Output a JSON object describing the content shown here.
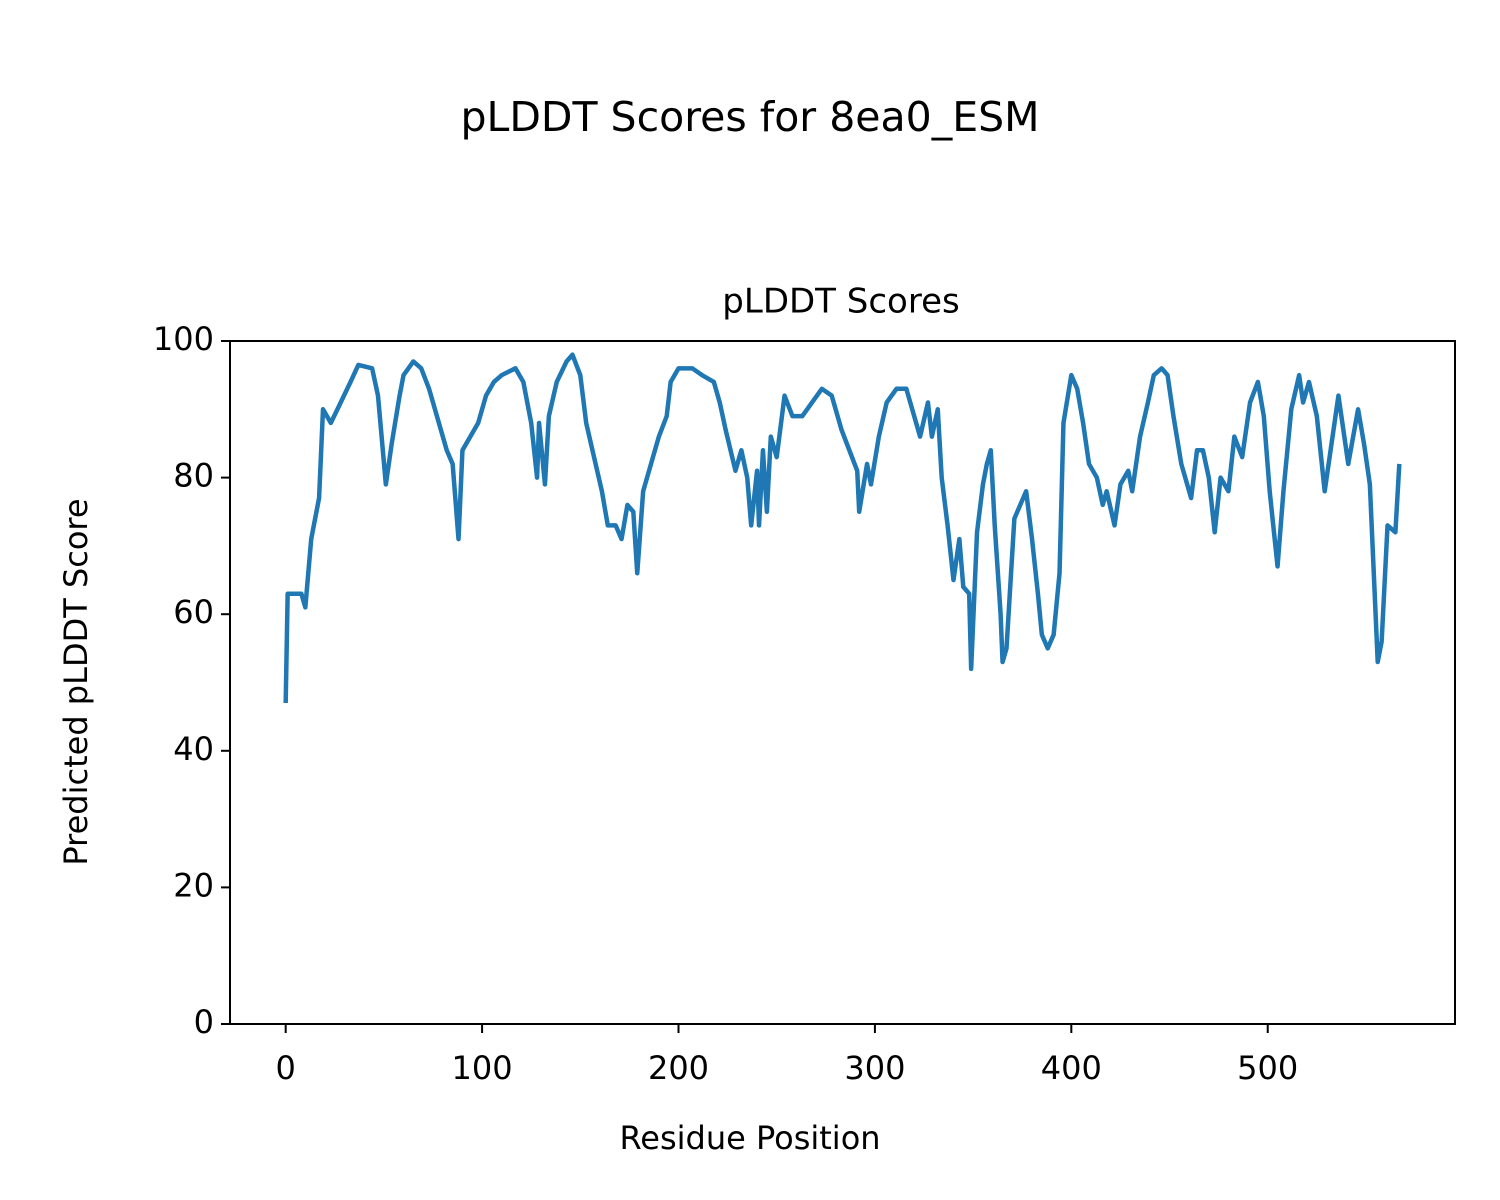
{
  "chart_data": {
    "type": "line",
    "title": "pLDDT Scores for 8ea0_ESM",
    "subtitle": "pLDDT Scores",
    "x_label": "Residue Position",
    "y_label": "Predicted pLDDT Score",
    "xlim": [
      -28.35,
      595.35
    ],
    "ylim": [
      0,
      100
    ],
    "xticks": [
      0,
      100,
      200,
      300,
      400,
      500
    ],
    "yticks": [
      0,
      20,
      40,
      60,
      80,
      100
    ],
    "x": [
      0,
      1,
      8,
      10,
      13,
      17,
      19,
      23,
      28,
      33,
      37,
      44,
      47,
      51,
      54,
      58,
      60,
      65,
      69,
      73,
      77,
      82,
      85,
      88,
      90,
      94,
      98,
      102,
      106,
      110,
      117,
      121,
      125,
      128,
      129,
      132,
      134,
      138,
      143,
      146,
      150,
      153,
      157,
      161,
      164,
      168,
      171,
      174,
      177,
      179,
      182,
      186,
      190,
      194,
      196,
      200,
      207,
      212,
      218,
      221,
      224,
      229,
      232,
      235,
      237,
      240,
      241,
      243,
      245,
      247,
      250,
      254,
      258,
      263,
      268,
      273,
      278,
      283,
      287,
      291,
      292,
      296,
      298,
      302,
      306,
      311,
      316,
      320,
      323,
      327,
      329,
      332,
      334,
      337,
      340,
      343,
      345,
      348,
      349,
      352,
      355,
      357,
      359,
      361,
      364,
      365,
      367,
      371,
      374,
      377,
      380,
      383,
      385,
      388,
      391,
      394,
      396,
      400,
      403,
      406,
      409,
      413,
      416,
      418,
      422,
      425,
      429,
      431,
      435,
      439,
      442,
      446,
      449,
      452,
      456,
      461,
      464,
      467,
      470,
      473,
      476,
      480,
      483,
      487,
      491,
      495,
      498,
      501,
      505,
      508,
      512,
      516,
      518,
      521,
      525,
      529,
      532,
      536,
      538,
      541,
      546,
      549,
      552,
      556,
      558,
      561,
      565,
      567
    ],
    "series": [
      {
        "name": "pLDDT",
        "color": "#1f77b4",
        "values": [
          47,
          63,
          63,
          61,
          71,
          77,
          90,
          88,
          91,
          94,
          96.5,
          96,
          92,
          79,
          85,
          92,
          95,
          97,
          96,
          93,
          89,
          84,
          82,
          71,
          84,
          86,
          88,
          92,
          94,
          95,
          96,
          94,
          88,
          80,
          88,
          79,
          89,
          94,
          97,
          98,
          95,
          88,
          83,
          78,
          73,
          73,
          71,
          76,
          75,
          66,
          78,
          82,
          86,
          89,
          94,
          96,
          96,
          95,
          94,
          91,
          87,
          81,
          84,
          80,
          73,
          81,
          73,
          84,
          75,
          86,
          83,
          92,
          89,
          89,
          91,
          93,
          92,
          87,
          84,
          81,
          75,
          82,
          79,
          86,
          91,
          93,
          93,
          89,
          86,
          91,
          86,
          90,
          80,
          73,
          65,
          71,
          64,
          63,
          52,
          72,
          79,
          82,
          84,
          73,
          60,
          53,
          55,
          74,
          76,
          78,
          71,
          63,
          57,
          55,
          57,
          66,
          88,
          95,
          93,
          88,
          82,
          80,
          76,
          78,
          73,
          79,
          81,
          78,
          86,
          91,
          95,
          96,
          95,
          89,
          82,
          77,
          84,
          84,
          80,
          72,
          80,
          78,
          86,
          83,
          91,
          94,
          89,
          78,
          67,
          78,
          90,
          95,
          91,
          94,
          89,
          78,
          84,
          92,
          88,
          82,
          90,
          85,
          79,
          53,
          56,
          73,
          72,
          82
        ]
      }
    ]
  }
}
